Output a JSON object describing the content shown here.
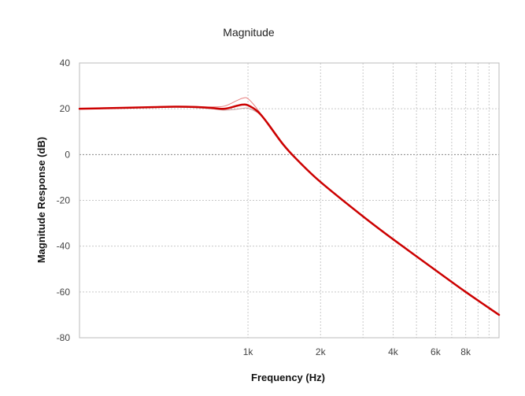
{
  "chart_data": {
    "type": "line",
    "title": "Magnitude",
    "xlabel": "Frequency (Hz)",
    "ylabel": "Magnitude Response (dB)",
    "x_scale": "log",
    "xlim": [
      200,
      11000
    ],
    "ylim": [
      -80,
      40
    ],
    "y_ticks": [
      40,
      20,
      0,
      -20,
      -40,
      -60,
      -80
    ],
    "x_ticks": [
      {
        "value": 1000,
        "label": "1k"
      },
      {
        "value": 2000,
        "label": "2k"
      },
      {
        "value": 4000,
        "label": "4k"
      },
      {
        "value": 6000,
        "label": "6k"
      },
      {
        "value": 8000,
        "label": "8k"
      }
    ],
    "x_gridlines": [
      1000,
      2000,
      3000,
      4000,
      5000,
      6000,
      7000,
      8000,
      9000,
      10000
    ],
    "grid": true,
    "series": [
      {
        "role": "upper",
        "color": "#e88080",
        "x": [
          200,
          300,
          400,
          500,
          600,
          700,
          800,
          900,
          950,
          1000,
          1100,
          1200,
          1400,
          1600,
          2000,
          3000,
          4000,
          6000,
          8000,
          11000
        ],
        "y": [
          20,
          20.4,
          20.8,
          21,
          21,
          20.8,
          21.2,
          23.6,
          24.6,
          24.4,
          19.5,
          13.5,
          4,
          -2.5,
          -12,
          -27,
          -37,
          -50.5,
          -60,
          -70
        ]
      },
      {
        "role": "lower",
        "color": "#c9a0a0",
        "x": [
          200,
          300,
          400,
          500,
          600,
          700,
          800,
          900,
          950,
          1000,
          1100,
          1200,
          1400,
          1600,
          2000,
          3000,
          4000,
          6000,
          8000,
          11000
        ],
        "y": [
          20,
          20.3,
          20.6,
          20.7,
          20.5,
          20,
          19.4,
          19.8,
          20.2,
          20.2,
          18.2,
          14.2,
          4.8,
          -2.2,
          -12,
          -27,
          -37,
          -50.5,
          -60,
          -70
        ]
      },
      {
        "role": "main",
        "color": "#cc0000",
        "x": [
          200,
          300,
          400,
          500,
          600,
          700,
          800,
          900,
          950,
          1000,
          1100,
          1200,
          1400,
          1600,
          2000,
          3000,
          4000,
          6000,
          8000,
          11000
        ],
        "y": [
          20,
          20.4,
          20.7,
          20.9,
          20.8,
          20.4,
          20,
          21.3,
          21.8,
          21.5,
          18.7,
          14,
          4.4,
          -2.3,
          -12,
          -27,
          -37,
          -50.5,
          -60,
          -70
        ]
      }
    ]
  }
}
